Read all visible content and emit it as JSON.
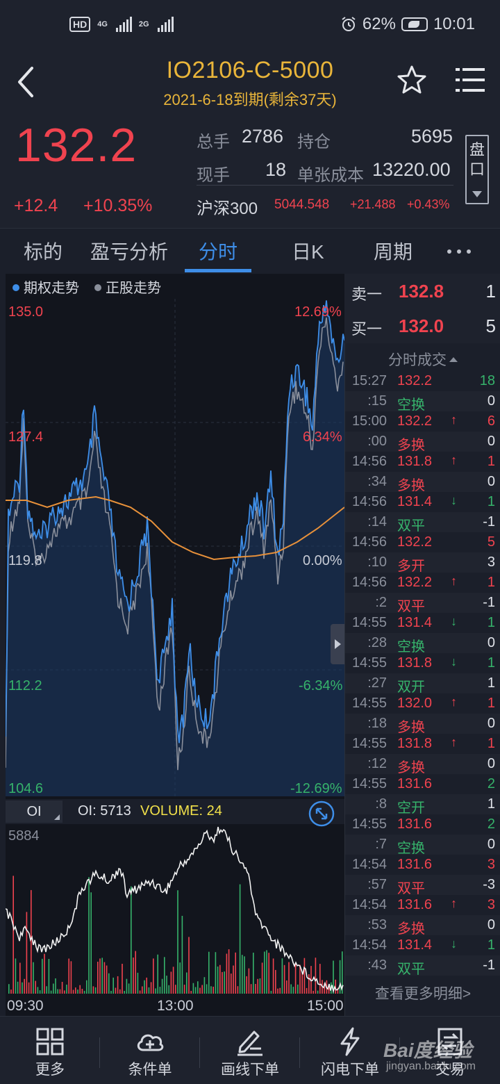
{
  "status_bar": {
    "hd": "HD",
    "net1": "4G",
    "net2": "2G",
    "battery": "62%",
    "time": "10:01"
  },
  "header": {
    "title": "IO2106-C-5000",
    "subtitle": "2021-6-18到期(剩余37天)"
  },
  "quote": {
    "last_price": "132.2",
    "change": "+12.4",
    "change_pct": "+10.35%",
    "volume_label": "总手",
    "volume": "2786",
    "oi_label": "持仓",
    "oi": "5695",
    "current_label": "现手",
    "current": "18",
    "cost_label": "单张成本",
    "cost": "13220.00",
    "index_name": "沪深300",
    "index_value": "5044.548",
    "index_change": "+21.488",
    "index_pct": "+0.43%",
    "pankou": "盘口"
  },
  "tabs": [
    {
      "label": "标的"
    },
    {
      "label": "盈亏分析"
    },
    {
      "label": "分时"
    },
    {
      "label": "日K"
    },
    {
      "label": "周期"
    }
  ],
  "chart": {
    "legend_option": "期权走势",
    "legend_underlying": "正股走势",
    "y_labels": [
      "135.0",
      "127.4",
      "119.8",
      "112.2",
      "104.6"
    ],
    "pct_labels": [
      "12.69%",
      "6.34%",
      "0.00%",
      "-6.34%",
      "-12.69%"
    ],
    "colors": {
      "up": "#f0434f",
      "down": "#36b36b",
      "option_line": "#3e8ee8",
      "avg_line": "#e8913a"
    }
  },
  "sub_chart": {
    "selector": "OI",
    "oi_text": "OI: 5713",
    "volume_text": "VOLUME: 24",
    "max_label": "5884"
  },
  "time_axis": [
    "09:30",
    "13:00",
    "15:00"
  ],
  "order_book": {
    "ask_label": "卖一",
    "ask_price": "132.8",
    "ask_qty": "1",
    "bid_label": "买一",
    "bid_price": "132.0",
    "bid_qty": "5"
  },
  "trades_title": "分时成交",
  "trades": [
    {
      "time": "15:27",
      "price": "132.2",
      "arrow": "",
      "qty": "18",
      "qty_color": "#36b36b",
      "price_color": "#f0434f"
    },
    {
      "time": ":15",
      "price": "空换",
      "arrow": "",
      "qty": "0",
      "qty_color": "#e0e3e9",
      "price_color": "#36b36b"
    },
    {
      "time": "15:00",
      "price": "132.2",
      "arrow": "↑",
      "qty": "6",
      "qty_color": "#f0434f",
      "price_color": "#f0434f"
    },
    {
      "time": ":00",
      "price": "多换",
      "arrow": "",
      "qty": "0",
      "qty_color": "#e0e3e9",
      "price_color": "#f0434f"
    },
    {
      "time": "14:56",
      "price": "131.8",
      "arrow": "↑",
      "qty": "1",
      "qty_color": "#f0434f",
      "price_color": "#f0434f"
    },
    {
      "time": ":34",
      "price": "多换",
      "arrow": "",
      "qty": "0",
      "qty_color": "#e0e3e9",
      "price_color": "#f0434f"
    },
    {
      "time": "14:56",
      "price": "131.4",
      "arrow": "↓",
      "qty": "1",
      "qty_color": "#36b36b",
      "price_color": "#f0434f"
    },
    {
      "time": ":14",
      "price": "双平",
      "arrow": "",
      "qty": "-1",
      "qty_color": "#e0e3e9",
      "price_color": "#36b36b"
    },
    {
      "time": "14:56",
      "price": "132.2",
      "arrow": "",
      "qty": "5",
      "qty_color": "#f0434f",
      "price_color": "#f0434f"
    },
    {
      "time": ":10",
      "price": "多开",
      "arrow": "",
      "qty": "3",
      "qty_color": "#e0e3e9",
      "price_color": "#f0434f"
    },
    {
      "time": "14:56",
      "price": "132.2",
      "arrow": "↑",
      "qty": "1",
      "qty_color": "#f0434f",
      "price_color": "#f0434f"
    },
    {
      "time": ":2",
      "price": "双平",
      "arrow": "",
      "qty": "-1",
      "qty_color": "#e0e3e9",
      "price_color": "#f0434f"
    },
    {
      "time": "14:55",
      "price": "131.4",
      "arrow": "↓",
      "qty": "1",
      "qty_color": "#36b36b",
      "price_color": "#f0434f"
    },
    {
      "time": ":28",
      "price": "空换",
      "arrow": "",
      "qty": "0",
      "qty_color": "#e0e3e9",
      "price_color": "#36b36b"
    },
    {
      "time": "14:55",
      "price": "131.8",
      "arrow": "↓",
      "qty": "1",
      "qty_color": "#36b36b",
      "price_color": "#f0434f"
    },
    {
      "time": ":27",
      "price": "双开",
      "arrow": "",
      "qty": "1",
      "qty_color": "#e0e3e9",
      "price_color": "#36b36b"
    },
    {
      "time": "14:55",
      "price": "132.0",
      "arrow": "↑",
      "qty": "1",
      "qty_color": "#f0434f",
      "price_color": "#f0434f"
    },
    {
      "time": ":18",
      "price": "多换",
      "arrow": "",
      "qty": "0",
      "qty_color": "#e0e3e9",
      "price_color": "#f0434f"
    },
    {
      "time": "14:55",
      "price": "131.8",
      "arrow": "↑",
      "qty": "1",
      "qty_color": "#f0434f",
      "price_color": "#f0434f"
    },
    {
      "time": ":12",
      "price": "多换",
      "arrow": "",
      "qty": "0",
      "qty_color": "#e0e3e9",
      "price_color": "#f0434f"
    },
    {
      "time": "14:55",
      "price": "131.6",
      "arrow": "",
      "qty": "2",
      "qty_color": "#36b36b",
      "price_color": "#f0434f"
    },
    {
      "time": ":8",
      "price": "空开",
      "arrow": "",
      "qty": "1",
      "qty_color": "#e0e3e9",
      "price_color": "#36b36b"
    },
    {
      "time": "14:55",
      "price": "131.6",
      "arrow": "",
      "qty": "2",
      "qty_color": "#36b36b",
      "price_color": "#f0434f"
    },
    {
      "time": ":7",
      "price": "空换",
      "arrow": "",
      "qty": "0",
      "qty_color": "#e0e3e9",
      "price_color": "#36b36b"
    },
    {
      "time": "14:54",
      "price": "131.6",
      "arrow": "",
      "qty": "3",
      "qty_color": "#f0434f",
      "price_color": "#f0434f"
    },
    {
      "time": ":57",
      "price": "双平",
      "arrow": "",
      "qty": "-3",
      "qty_color": "#e0e3e9",
      "price_color": "#f0434f"
    },
    {
      "time": "14:54",
      "price": "131.6",
      "arrow": "↑",
      "qty": "3",
      "qty_color": "#f0434f",
      "price_color": "#f0434f"
    },
    {
      "time": ":53",
      "price": "多换",
      "arrow": "",
      "qty": "0",
      "qty_color": "#e0e3e9",
      "price_color": "#f0434f"
    },
    {
      "time": "14:54",
      "price": "131.4",
      "arrow": "↓",
      "qty": "1",
      "qty_color": "#36b36b",
      "price_color": "#f0434f"
    },
    {
      "time": ":43",
      "price": "双平",
      "arrow": "",
      "qty": "-1",
      "qty_color": "#e0e3e9",
      "price_color": "#36b36b"
    }
  ],
  "see_more": "查看更多明细>",
  "bottom_nav": [
    {
      "label": "更多",
      "icon": "grid-icon"
    },
    {
      "label": "条件单",
      "icon": "cloud-plus-icon"
    },
    {
      "label": "画线下单",
      "icon": "pen-line-icon"
    },
    {
      "label": "闪电下单",
      "icon": "lightning-icon"
    },
    {
      "label": "交易",
      "icon": "trade-icon"
    }
  ],
  "watermark": {
    "text": "Bai度经验",
    "sub": "jingyan.baidu.com"
  }
}
